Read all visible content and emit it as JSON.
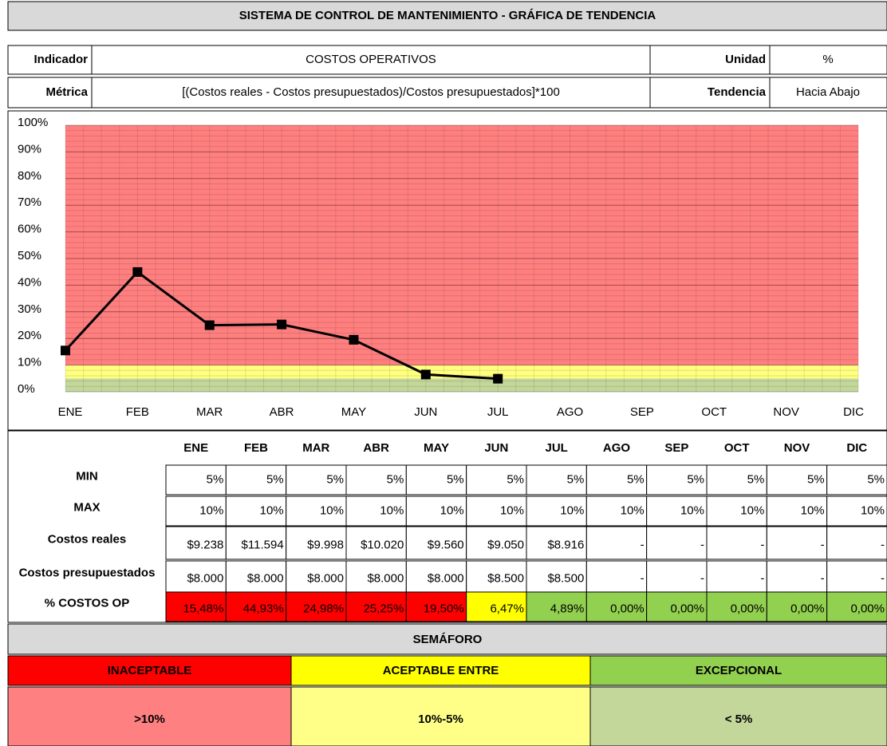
{
  "header": {
    "title": "SISTEMA DE CONTROL DE MANTENIMIENTO - GRÁFICA DE TENDENCIA",
    "indicator_label": "Indicador",
    "indicator": "COSTOS OPERATIVOS",
    "unit_label": "Unidad",
    "unit": "%",
    "metric_label": "Métrica",
    "metric": "[(Costos reales - Costos presupuestados)/Costos presupuestados]*100",
    "trend_label": "Tendencia",
    "trend": "Hacia Abajo"
  },
  "chart_data": {
    "type": "line",
    "categories": [
      "ENE",
      "FEB",
      "MAR",
      "ABR",
      "MAY",
      "JUN",
      "JUL",
      "AGO",
      "SEP",
      "OCT",
      "NOV",
      "DIC"
    ],
    "values": [
      15.48,
      44.93,
      24.98,
      25.25,
      19.5,
      6.47,
      4.89,
      null,
      null,
      null,
      null,
      null
    ],
    "color": "#000000",
    "ylim": [
      0,
      100
    ],
    "yticks": [
      {
        "value": 0,
        "label": "0%"
      },
      {
        "value": 10,
        "label": "10%"
      },
      {
        "value": 20,
        "label": "20%"
      },
      {
        "value": 30,
        "label": "30%"
      },
      {
        "value": 40,
        "label": "40%"
      },
      {
        "value": 50,
        "label": "50%"
      },
      {
        "value": 60,
        "label": "60%"
      },
      {
        "value": 70,
        "label": "70%"
      },
      {
        "value": 80,
        "label": "80%"
      },
      {
        "value": 90,
        "label": "90%"
      },
      {
        "value": 100,
        "label": "100%"
      }
    ],
    "bands": [
      {
        "from": 0,
        "to": 5,
        "color": "#c4d79b"
      },
      {
        "from": 5,
        "to": 10,
        "color": "#ffff80"
      },
      {
        "from": 10,
        "to": 100,
        "color": "#ff7f7f"
      }
    ],
    "grid": true
  },
  "table": {
    "columns": [
      "ENE",
      "FEB",
      "MAR",
      "ABR",
      "MAY",
      "JUN",
      "JUL",
      "AGO",
      "SEP",
      "OCT",
      "NOV",
      "DIC"
    ],
    "rows": [
      {
        "label": "MIN",
        "cells": [
          "5%",
          "5%",
          "5%",
          "5%",
          "5%",
          "5%",
          "5%",
          "5%",
          "5%",
          "5%",
          "5%",
          "5%"
        ]
      },
      {
        "label": "MAX",
        "cells": [
          "10%",
          "10%",
          "10%",
          "10%",
          "10%",
          "10%",
          "10%",
          "10%",
          "10%",
          "10%",
          "10%",
          "10%"
        ]
      },
      {
        "label": "Costos reales",
        "cells": [
          "$9.238",
          "$11.594",
          "$9.998",
          "$10.020",
          "$9.560",
          "$9.050",
          "$8.916",
          "-",
          "-",
          "-",
          "-",
          "-"
        ]
      },
      {
        "label": "Costos presupuestados",
        "cells": [
          "$8.000",
          "$8.000",
          "$8.000",
          "$8.000",
          "$8.000",
          "$8.500",
          "$8.500",
          "-",
          "-",
          "-",
          "-",
          "-"
        ]
      },
      {
        "label": "% COSTOS OP",
        "cells": [
          "15,48%",
          "44,93%",
          "24,98%",
          "25,25%",
          "19,50%",
          "6,47%",
          "4,89%",
          "0,00%",
          "0,00%",
          "0,00%",
          "0,00%",
          "0,00%"
        ],
        "colors": [
          "#ff0000",
          "#ff0000",
          "#ff0000",
          "#ff0000",
          "#ff0000",
          "#ffff00",
          "#92d050",
          "#92d050",
          "#92d050",
          "#92d050",
          "#92d050",
          "#92d050"
        ]
      }
    ]
  },
  "semaforo": {
    "title": "SEMÁFORO",
    "levels": [
      {
        "name": "INACEPTABLE",
        "range": ">10%",
        "color": "#ff0000",
        "range_color": "#ff8080"
      },
      {
        "name": "ACEPTABLE ENTRE",
        "range": "10%-5%",
        "color": "#ffff00",
        "range_color": "#ffff88"
      },
      {
        "name": "EXCEPCIONAL",
        "range": "< 5%",
        "color": "#92d050",
        "range_color": "#c4d79b"
      }
    ]
  }
}
